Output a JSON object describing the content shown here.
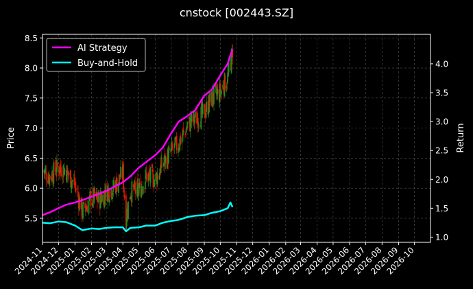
{
  "colors": {
    "background": "#000000",
    "axis": "#ffffff",
    "grid": "#555555",
    "up_candle": "#1f8f1f",
    "down_candle": "#e01a00",
    "ai_strategy": "#ff00ff",
    "buy_and_hold": "#00ffff"
  },
  "chart_data": {
    "type": "line",
    "title": "cnstock [002443.SZ]",
    "ylabel": "Price",
    "y2label": "Return",
    "grid": true,
    "legend_position": "top-left",
    "xlim": [
      "2024-11-01",
      "2026-10-31"
    ],
    "ylim": [
      5.1,
      8.56
    ],
    "y2lim": [
      0.91,
      4.51
    ],
    "x_ticks": [
      "2024-11",
      "2024-12",
      "2025-01",
      "2025-02",
      "2025-03",
      "2025-04",
      "2025-05",
      "2025-06",
      "2025-07",
      "2025-08",
      "2025-09",
      "2025-10",
      "2025-11",
      "2025-12",
      "2026-01",
      "2026-02",
      "2026-03",
      "2026-04",
      "2026-05",
      "2026-06",
      "2026-07",
      "2026-08",
      "2026-09",
      "2026-10"
    ],
    "y_ticks": [
      "5.5",
      "6.0",
      "6.5",
      "7.0",
      "7.5",
      "8.0",
      "8.5"
    ],
    "y2_ticks": [
      "1.0",
      "1.5",
      "2.0",
      "2.5",
      "3.0",
      "3.5",
      "4.0"
    ],
    "price_series": {
      "name": "Price",
      "dates": [
        "2024-11-01",
        "2024-11-15",
        "2024-12-01",
        "2024-12-15",
        "2025-01-01",
        "2025-01-15",
        "2025-02-01",
        "2025-02-15",
        "2025-03-01",
        "2025-03-15",
        "2025-04-01",
        "2025-04-07",
        "2025-04-15",
        "2025-05-01",
        "2025-05-15",
        "2025-06-01",
        "2025-06-15",
        "2025-07-01",
        "2025-07-15",
        "2025-08-01",
        "2025-08-15",
        "2025-09-01",
        "2025-09-15",
        "2025-10-01",
        "2025-10-15",
        "2025-10-20",
        "2025-10-24"
      ],
      "values": [
        6.3,
        6.2,
        6.35,
        6.3,
        6.05,
        5.6,
        5.85,
        5.8,
        5.95,
        6.0,
        6.25,
        5.5,
        5.95,
        5.95,
        6.2,
        6.15,
        6.4,
        6.6,
        6.75,
        7.05,
        7.15,
        7.25,
        7.5,
        7.6,
        7.85,
        8.05,
        8.3
      ]
    },
    "series": [
      {
        "name": "AI Strategy",
        "x": [
          "2024-11-01",
          "2024-11-15",
          "2024-12-01",
          "2024-12-15",
          "2025-01-01",
          "2025-01-15",
          "2025-02-01",
          "2025-02-15",
          "2025-03-01",
          "2025-03-15",
          "2025-04-01",
          "2025-04-15",
          "2025-05-01",
          "2025-05-15",
          "2025-06-01",
          "2025-06-15",
          "2025-07-01",
          "2025-07-15",
          "2025-08-01",
          "2025-08-15",
          "2025-09-01",
          "2025-09-15",
          "2025-10-01",
          "2025-10-15",
          "2025-10-20",
          "2025-10-24"
        ],
        "y": [
          1.38,
          1.43,
          1.5,
          1.56,
          1.6,
          1.64,
          1.7,
          1.75,
          1.8,
          1.87,
          1.95,
          2.05,
          2.2,
          2.3,
          2.42,
          2.55,
          2.8,
          3.0,
          3.1,
          3.2,
          3.45,
          3.55,
          3.8,
          4.0,
          4.15,
          4.25
        ]
      },
      {
        "name": "Buy-and-Hold",
        "x": [
          "2024-11-01",
          "2024-11-15",
          "2024-12-01",
          "2024-12-15",
          "2025-01-01",
          "2025-01-15",
          "2025-02-01",
          "2025-02-15",
          "2025-03-01",
          "2025-03-15",
          "2025-04-01",
          "2025-04-07",
          "2025-04-15",
          "2025-05-01",
          "2025-05-15",
          "2025-06-01",
          "2025-06-15",
          "2025-07-01",
          "2025-07-15",
          "2025-08-01",
          "2025-08-15",
          "2025-09-01",
          "2025-09-15",
          "2025-10-01",
          "2025-10-15",
          "2025-10-20",
          "2025-10-24"
        ],
        "y": [
          1.25,
          1.24,
          1.27,
          1.26,
          1.2,
          1.12,
          1.15,
          1.14,
          1.16,
          1.17,
          1.17,
          1.1,
          1.16,
          1.17,
          1.2,
          1.2,
          1.25,
          1.28,
          1.3,
          1.35,
          1.37,
          1.38,
          1.42,
          1.45,
          1.5,
          1.6,
          1.52
        ]
      }
    ]
  }
}
